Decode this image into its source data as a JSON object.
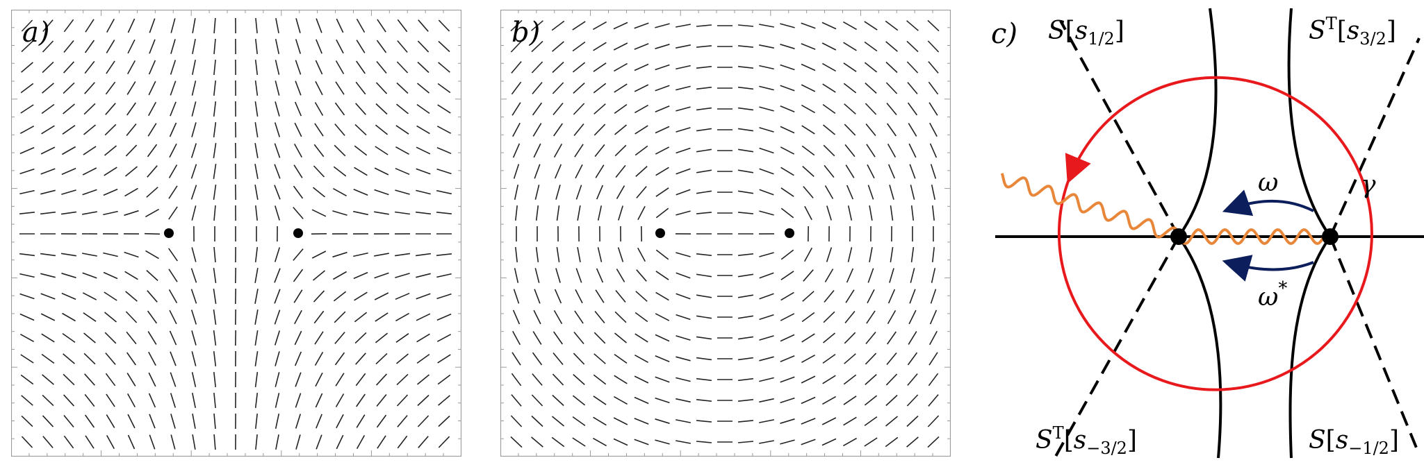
{
  "panels": {
    "a": {
      "label": "a)"
    },
    "b": {
      "label": "b)"
    },
    "c": {
      "label": "c)",
      "sectors": {
        "top_left": {
          "S": "S",
          "bracket_open": "[",
          "s": "s",
          "sub": "1/2",
          "bracket_close": "]"
        },
        "top_right": {
          "S": "S",
          "sup": "T",
          "bracket_open": "[",
          "s": "s",
          "sub": "3/2",
          "bracket_close": "]"
        },
        "bottom_left": {
          "S": "S",
          "sup": "T",
          "bracket_open": "[",
          "s": "s",
          "sub": "−3/2",
          "bracket_close": "]"
        },
        "bottom_right": {
          "S": "S",
          "bracket_open": "[",
          "s": "s",
          "sub": "−1/2",
          "bracket_close": "]"
        }
      },
      "omega": "ω",
      "omega_star_base": "ω",
      "omega_star_sup": "*",
      "gamma": "γ"
    }
  },
  "colors": {
    "loop": "#e8191c",
    "branch_cut": "#e8873a",
    "monodromy_arrow": "#0c1f5c",
    "lines": "#000000",
    "frame": "#9a9a9a"
  }
}
